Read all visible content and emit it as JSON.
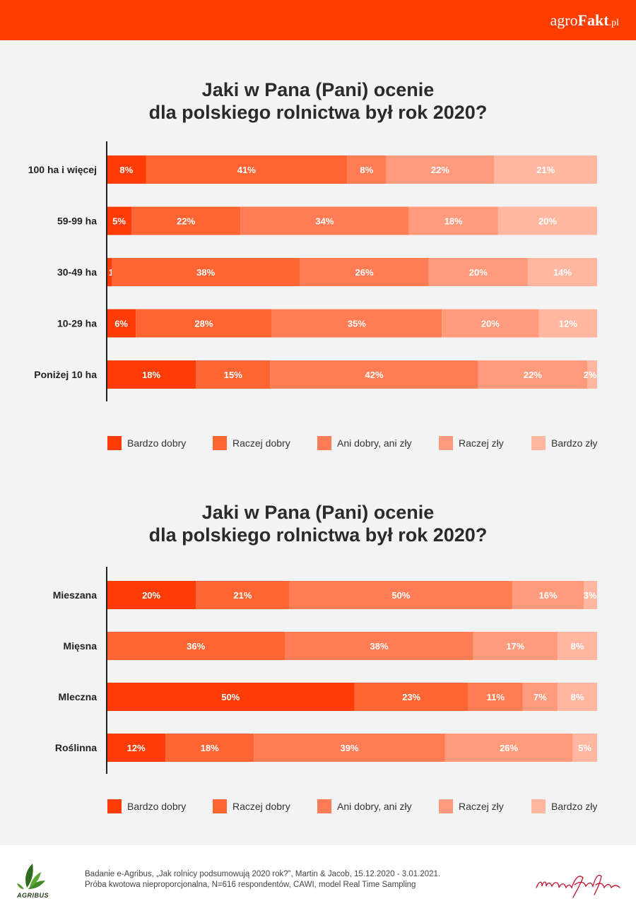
{
  "header": {
    "brand_prefix": "agro",
    "brand_main": "Fakt",
    "brand_suffix": ".pl",
    "color": "#ff3d00"
  },
  "legend_labels": [
    "Bardzo dobry",
    "Raczej dobry",
    "Ani dobry, ani zły",
    "Raczej zły",
    "Bardzo zły"
  ],
  "series_colors": [
    "#ff3c06",
    "#ff6532",
    "#ff7c54",
    "#ff9a7d",
    "#ffb7a2"
  ],
  "chart_data": [
    {
      "type": "bar",
      "orientation": "horizontal",
      "stacked": true,
      "title_line1": "Jaki w Pana (Pani) ocenie",
      "title_line2": "dla polskiego rolnictwa był rok 2020?",
      "categories": [
        "100 ha i więcej",
        "59-99 ha",
        "30-49 ha",
        "10-29 ha",
        "Poniżej 10 ha"
      ],
      "unit": "%",
      "series": [
        {
          "name": "Bardzo dobry",
          "values": [
            8,
            5,
            1,
            6,
            18
          ]
        },
        {
          "name": "Raczej dobry",
          "values": [
            41,
            22,
            38,
            28,
            15
          ]
        },
        {
          "name": "Ani dobry, ani zły",
          "values": [
            8,
            34,
            26,
            35,
            42
          ]
        },
        {
          "name": "Raczej zły",
          "values": [
            22,
            18,
            20,
            20,
            22
          ]
        },
        {
          "name": "Bardzo zły",
          "values": [
            21,
            20,
            14,
            12,
            2
          ]
        }
      ],
      "legend_position": "bottom"
    },
    {
      "type": "bar",
      "orientation": "horizontal",
      "stacked": true,
      "title_line1": "Jaki w Pana (Pani) ocenie",
      "title_line2": "dla polskiego rolnictwa był rok 2020?",
      "categories": [
        "Mieszana",
        "Mięsna",
        "Mleczna",
        "Roślinna"
      ],
      "unit": "%",
      "series": [
        {
          "name": "Bardzo dobry",
          "values": [
            20,
            0,
            50,
            12
          ]
        },
        {
          "name": "Raczej dobry",
          "values": [
            21,
            36,
            23,
            18
          ]
        },
        {
          "name": "Ani dobry, ani zły",
          "values": [
            50,
            38,
            11,
            39
          ]
        },
        {
          "name": "Raczej zły",
          "values": [
            16,
            17,
            7,
            26
          ]
        },
        {
          "name": "Bardzo zły",
          "values": [
            3,
            8,
            8,
            5
          ]
        }
      ],
      "legend_position": "bottom"
    }
  ],
  "footer": {
    "agribus_label": "AGRIBUS",
    "source_line1": "Badanie e-Agribus, „Jak rolnicy podsumowują 2020 rok?”, Martin & Jacob, 15.12.2020 - 3.01.2021.",
    "source_line2": "Próba kwotowa nieproporcjonalna, N=616 respondentów, CAWI, model Real Time Sampling"
  }
}
